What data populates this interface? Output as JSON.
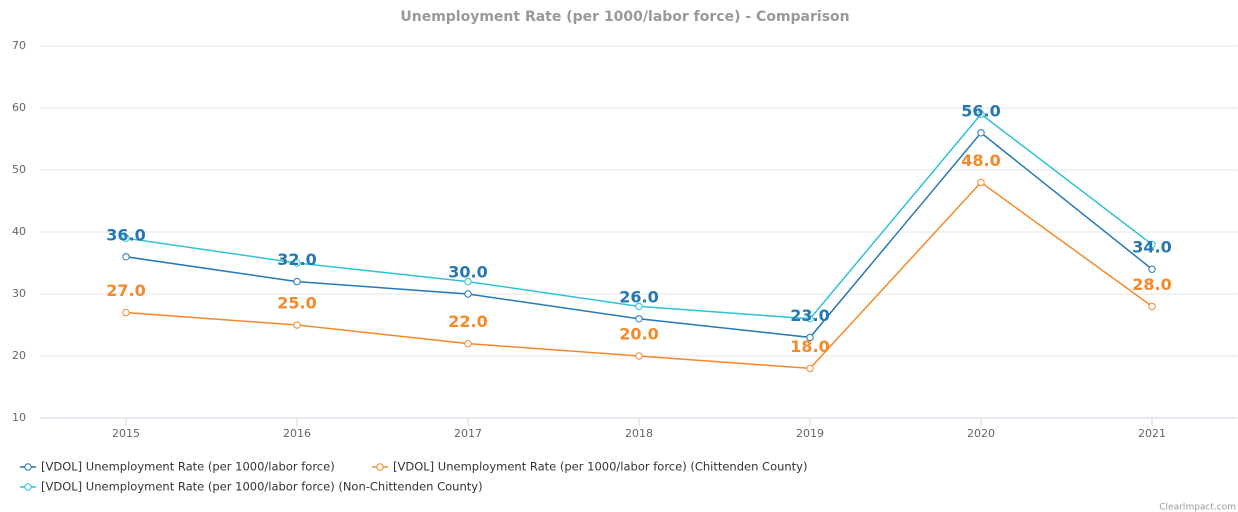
{
  "chart_data": {
    "type": "line",
    "title": "Unemployment Rate (per 1000/labor force) - Comparison",
    "categories": [
      "2015",
      "2016",
      "2017",
      "2018",
      "2019",
      "2020",
      "2021"
    ],
    "series": [
      {
        "name": "[VDOL] Unemployment Rate (per 1000/labor force)",
        "color": "#2578b4",
        "values": [
          36,
          32,
          30,
          26,
          23,
          56,
          34
        ],
        "value_labels": [
          "36.0",
          "32.0",
          "30.0",
          "26.0",
          "23.0",
          "56.0",
          "34.0"
        ]
      },
      {
        "name": "[VDOL] Unemployment Rate (per 1000/labor force) (Chittenden County)",
        "color": "#f5892a",
        "values": [
          27,
          25,
          22,
          20,
          18,
          48,
          28
        ],
        "value_labels": [
          "27.0",
          "25.0",
          "22.0",
          "20.0",
          "18.0",
          "48.0",
          "28.0"
        ]
      },
      {
        "name": "[VDOL] Unemployment Rate (per 1000/labor force) (Non-Chittenden County)",
        "color": "#2ec3d3",
        "values": [
          39,
          35,
          32,
          28,
          26,
          59,
          38
        ]
      }
    ],
    "ylim": [
      10,
      70
    ],
    "yticks": [
      10,
      20,
      30,
      40,
      50,
      60,
      70
    ],
    "grid": true,
    "credit": "ClearImpact.com"
  }
}
